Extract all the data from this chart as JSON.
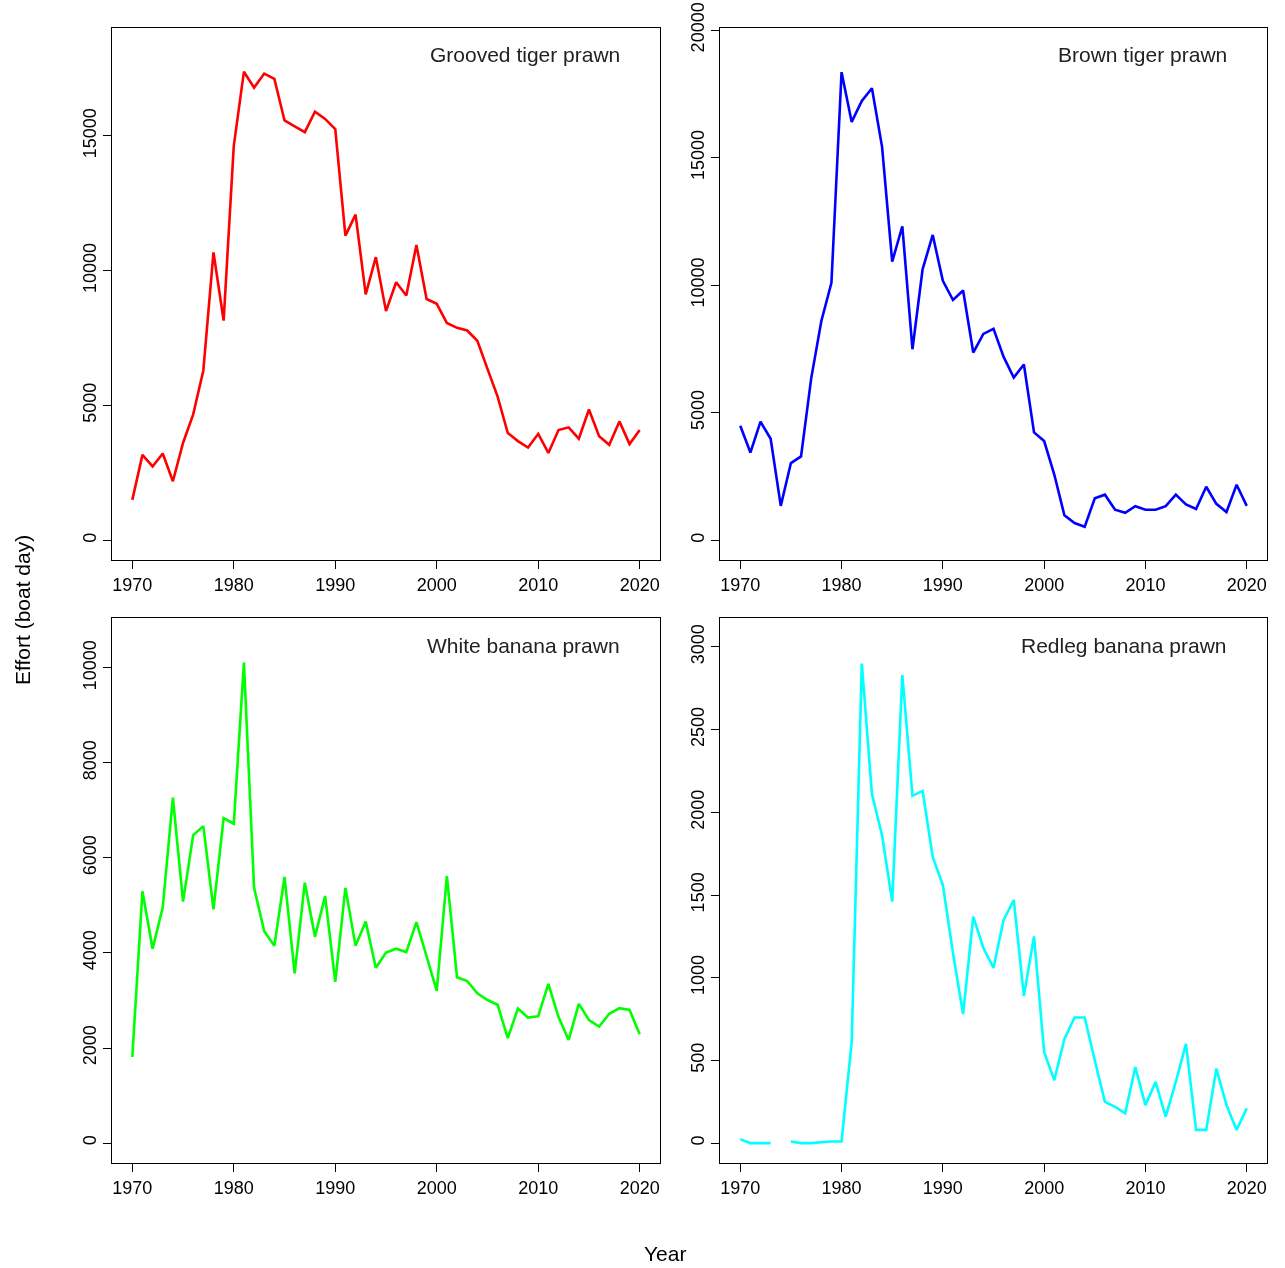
{
  "chart_data": [
    {
      "type": "line",
      "title": "Grooved tiger prawn",
      "ylabel": "Effort (boat day)",
      "xlabel": "Year",
      "marker": "none",
      "line_style": "solid",
      "x": [
        1970,
        1971,
        1972,
        1973,
        1974,
        1975,
        1976,
        1977,
        1978,
        1979,
        1980,
        1981,
        1982,
        1983,
        1984,
        1985,
        1986,
        1987,
        1988,
        1989,
        1990,
        1991,
        1992,
        1993,
        1994,
        1995,
        1996,
        1997,
        1998,
        1999,
        2000,
        2001,
        2002,
        2003,
        2004,
        2005,
        2006,
        2007,
        2008,
        2009,
        2010,
        2011,
        2012,
        2013,
        2014,
        2015,
        2016,
        2017,
        2018,
        2019,
        2020
      ],
      "xlim": [
        1968,
        2022
      ],
      "xticks": [
        1970,
        1980,
        1990,
        2000,
        2010,
        2020
      ],
      "ylim": [
        -730,
        19000
      ],
      "yticks": [
        0,
        5000,
        10000,
        15000
      ],
      "series": [
        {
          "color": "#ff0000",
          "values": [
            1500,
            3170,
            2740,
            3220,
            2190,
            3610,
            4670,
            6300,
            10680,
            8150,
            14630,
            17380,
            16790,
            17310,
            17110,
            15570,
            15350,
            15140,
            15900,
            15630,
            15250,
            11300,
            12080,
            9120,
            10500,
            8500,
            9570,
            9080,
            10950,
            8950,
            8770,
            8060,
            7880,
            7780,
            7400,
            6360,
            5330,
            3980,
            3680,
            3440,
            3950,
            3240,
            4090,
            4190,
            3770,
            4850,
            3860,
            3540,
            4410,
            3570,
            4090
          ]
        }
      ]
    },
    {
      "type": "line",
      "title": "Brown tiger prawn",
      "marker": "none",
      "line_style": "solid",
      "x": [
        1970,
        1971,
        1972,
        1973,
        1974,
        1975,
        1976,
        1977,
        1978,
        1979,
        1980,
        1981,
        1982,
        1983,
        1984,
        1985,
        1986,
        1987,
        1988,
        1989,
        1990,
        1991,
        1992,
        1993,
        1994,
        1995,
        1996,
        1997,
        1998,
        1999,
        2000,
        2001,
        2002,
        2003,
        2004,
        2005,
        2006,
        2007,
        2008,
        2009,
        2010,
        2011,
        2012,
        2013,
        2014,
        2015,
        2016,
        2017,
        2018,
        2019,
        2020
      ],
      "xlim": [
        1968,
        2022
      ],
      "xticks": [
        1970,
        1980,
        1990,
        2000,
        2010,
        2020
      ],
      "ylim": [
        -770,
        20080
      ],
      "yticks": [
        0,
        5000,
        10000,
        15000,
        20000
      ],
      "series": [
        {
          "color": "#0000ff",
          "values": [
            4490,
            3440,
            4650,
            3980,
            1350,
            3030,
            3290,
            6340,
            8590,
            10090,
            18350,
            16400,
            17220,
            17720,
            15420,
            10920,
            12310,
            7490,
            10620,
            11970,
            10170,
            9420,
            9790,
            7360,
            8090,
            8290,
            7190,
            6380,
            6890,
            4230,
            3890,
            2580,
            980,
            680,
            530,
            1650,
            1790,
            1200,
            1080,
            1340,
            1200,
            1200,
            1340,
            1790,
            1410,
            1230,
            2100,
            1430,
            1110,
            2180,
            1350
          ]
        }
      ]
    },
    {
      "type": "line",
      "title": "White banana prawn",
      "marker": "none",
      "line_style": "solid",
      "x": [
        1970,
        1971,
        1972,
        1973,
        1974,
        1975,
        1976,
        1977,
        1978,
        1979,
        1980,
        1981,
        1982,
        1983,
        1984,
        1985,
        1986,
        1987,
        1988,
        1989,
        1990,
        1991,
        1992,
        1993,
        1994,
        1995,
        1996,
        1997,
        1998,
        1999,
        2000,
        2001,
        2002,
        2003,
        2004,
        2005,
        2006,
        2007,
        2008,
        2009,
        2010,
        2011,
        2012,
        2013,
        2014,
        2015,
        2016,
        2017,
        2018,
        2019,
        2020
      ],
      "xlim": [
        1968,
        2022
      ],
      "xticks": [
        1970,
        1980,
        1990,
        2000,
        2010,
        2020
      ],
      "ylim": [
        -420,
        11050
      ],
      "yticks": [
        0,
        2000,
        4000,
        6000,
        8000,
        10000
      ],
      "series": [
        {
          "color": "#00ff00",
          "values": [
            1810,
            5300,
            4090,
            4960,
            7270,
            5080,
            6480,
            6670,
            4920,
            6840,
            6720,
            10110,
            5370,
            4460,
            4150,
            5600,
            3570,
            5480,
            4340,
            5200,
            3390,
            5370,
            4150,
            4660,
            3690,
            4010,
            4090,
            4020,
            4650,
            3930,
            3200,
            5620,
            3490,
            3410,
            3150,
            3010,
            2910,
            2210,
            2830,
            2640,
            2670,
            3350,
            2650,
            2170,
            2930,
            2590,
            2450,
            2720,
            2840,
            2800,
            2290
          ]
        }
      ]
    },
    {
      "type": "line",
      "title": "Redleg banana prawn",
      "marker": "none",
      "line_style": "solid",
      "x": [
        1970,
        1971,
        1972,
        1973,
        1974,
        1975,
        1976,
        1977,
        1978,
        1979,
        1980,
        1981,
        1982,
        1983,
        1984,
        1985,
        1986,
        1987,
        1988,
        1989,
        1990,
        1991,
        1992,
        1993,
        1994,
        1995,
        1996,
        1997,
        1998,
        1999,
        2000,
        2001,
        2002,
        2003,
        2004,
        2005,
        2006,
        2007,
        2008,
        2009,
        2010,
        2011,
        2012,
        2013,
        2014,
        2015,
        2016,
        2017,
        2018,
        2019,
        2020
      ],
      "xlim": [
        1968,
        2022
      ],
      "xticks": [
        1970,
        1980,
        1990,
        2000,
        2010,
        2020
      ],
      "ylim": [
        -120,
        3175
      ],
      "yticks": [
        0,
        500,
        1000,
        1500,
        2000,
        2500,
        3000
      ],
      "series": [
        {
          "color": "#00ffff",
          "values": [
            24,
            0,
            0,
            0,
            null,
            10,
            0,
            0,
            5,
            10,
            10,
            612,
            2900,
            2110,
            1860,
            1460,
            2830,
            2100,
            2130,
            1730,
            1560,
            1150,
            780,
            1370,
            1180,
            1060,
            1350,
            1470,
            890,
            1250,
            550,
            380,
            630,
            760,
            760,
            500,
            250,
            220,
            180,
            460,
            230,
            370,
            160,
            370,
            600,
            80,
            80,
            450,
            230,
            80,
            210
          ]
        }
      ]
    }
  ]
}
